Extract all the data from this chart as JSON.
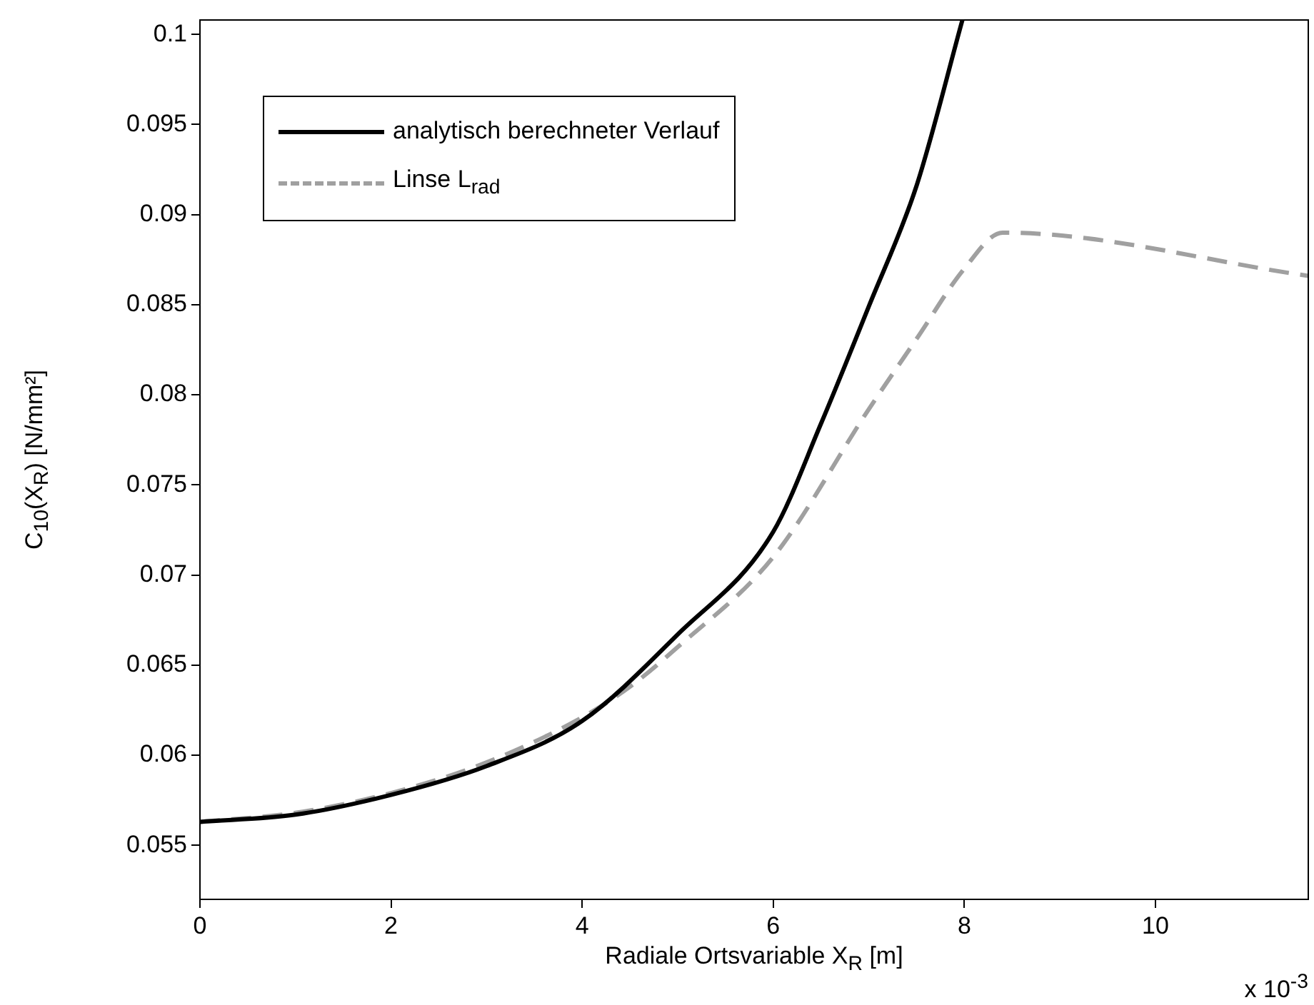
{
  "chart_data": {
    "type": "line",
    "xlabel": "Radiale Ortsvariable X$_{R}$ [m]",
    "ylabel": "C$_{10}$(X$_{R}$) [N/mm²]",
    "annotations": [
      "x 10$^{-3}$"
    ],
    "xlim": [
      0,
      11.6
    ],
    "xticks": [
      0,
      2,
      4,
      6,
      8,
      10
    ],
    "ylim": [
      0.052,
      0.1008
    ],
    "yticks": [
      0.055,
      0.06,
      0.065,
      0.07,
      0.075,
      0.08,
      0.085,
      0.09,
      0.095,
      0.1
    ],
    "grid": false,
    "legend": "top left",
    "marker": "none",
    "series": [
      {
        "name": "analytisch berechneter Verlauf",
        "color": "#000000",
        "line_style": "solid",
        "x": [
          0,
          1,
          2,
          3,
          4,
          5,
          6,
          6.5,
          7,
          7.5,
          7.98
        ],
        "values": [
          0.0563,
          0.0567,
          0.0578,
          0.0594,
          0.0619,
          0.0667,
          0.0724,
          0.0784,
          0.0849,
          0.0916,
          0.1008
        ]
      },
      {
        "name": "Linse L$_{rad}$",
        "color": "#a0a0a0",
        "line_style": "dashed",
        "x": [
          0,
          1,
          2,
          3,
          4,
          4.5,
          5,
          6,
          7,
          7.5,
          8,
          8.4,
          11.6
        ],
        "values": [
          0.0563,
          0.0568,
          0.0579,
          0.0596,
          0.0621,
          0.0638,
          0.066,
          0.071,
          0.0792,
          0.0831,
          0.087,
          0.089,
          0.0866
        ]
      }
    ]
  }
}
